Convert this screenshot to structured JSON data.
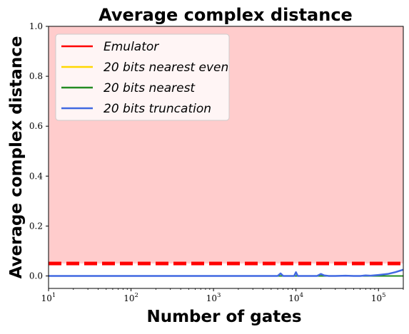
{
  "chart_data": {
    "type": "line",
    "title": "Average complex distance",
    "xlabel": "Number of gates",
    "ylabel": "Average complex distance",
    "xscale": "log",
    "xlim": [
      10,
      200000
    ],
    "ylim": [
      -0.05,
      1.0
    ],
    "x_ticks": [
      {
        "base": "10",
        "exp": "1",
        "value": 10
      },
      {
        "base": "10",
        "exp": "2",
        "value": 100
      },
      {
        "base": "10",
        "exp": "3",
        "value": 1000
      },
      {
        "base": "10",
        "exp": "4",
        "value": 10000
      },
      {
        "base": "10",
        "exp": "5",
        "value": 100000
      }
    ],
    "y_ticks": [
      "0.0",
      "0.2",
      "0.4",
      "0.6",
      "0.8",
      "1.0"
    ],
    "grid": false,
    "legend_position": "top-left",
    "shaded_region": {
      "y_from": 0.05,
      "y_to": 1.0,
      "color": "#ffcccc"
    },
    "series": [
      {
        "name": "Emulator",
        "color": "#ff0000",
        "style": "dashed",
        "x": [
          10,
          200000
        ],
        "y": [
          0.05,
          0.05
        ]
      },
      {
        "name": "20 bits nearest even",
        "color": "#ffd700",
        "style": "solid",
        "x": [
          10,
          100,
          1000,
          5000,
          10000,
          20000,
          50000,
          100000,
          200000
        ],
        "y": [
          0.0,
          0.0,
          0.0,
          0.0,
          0.0,
          0.0,
          0.0,
          0.0,
          0.0
        ]
      },
      {
        "name": "20 bits nearest",
        "color": "#228b22",
        "style": "solid",
        "x": [
          10,
          100,
          1000,
          5000,
          10000,
          20000,
          50000,
          100000,
          200000
        ],
        "y": [
          0.0,
          0.0,
          0.0,
          0.0,
          0.0,
          0.0,
          0.0,
          0.0,
          0.0
        ]
      },
      {
        "name": "20 bits truncation",
        "color": "#4169e1",
        "style": "solid",
        "x": [
          10,
          100,
          1000,
          3000,
          5000,
          6000,
          6500,
          7000,
          8000,
          9500,
          10000,
          10500,
          12000,
          15000,
          18000,
          20000,
          22000,
          25000,
          30000,
          40000,
          50000,
          60000,
          70000,
          80000,
          100000,
          130000,
          160000,
          200000
        ],
        "y": [
          0.0,
          0.0,
          0.0,
          0.0,
          0.0,
          0.0,
          0.01,
          0.0,
          0.0,
          0.0,
          0.015,
          0.0,
          0.0,
          0.0,
          0.0,
          0.008,
          0.002,
          0.0,
          0.0,
          0.001,
          0.0,
          0.0,
          0.002,
          0.001,
          0.004,
          0.008,
          0.015,
          0.025
        ]
      }
    ]
  }
}
